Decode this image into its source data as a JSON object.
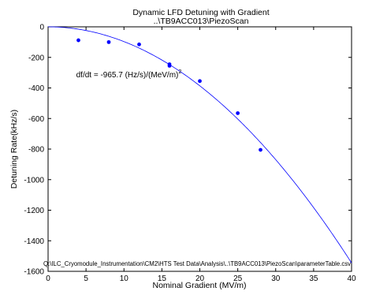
{
  "chart_data": {
    "type": "scatter",
    "title_lines": [
      "Dynamic LFD Detuning with Gradient",
      "..\\TB9ACC013\\PiezoScan"
    ],
    "xlabel": "Nominal Gradient (MV/m)",
    "ylabel": "Detuning Rate(kHz/s)",
    "xlim": [
      0,
      40
    ],
    "ylim": [
      -1600,
      0
    ],
    "xticks": [
      0,
      5,
      10,
      15,
      20,
      25,
      30,
      35,
      40
    ],
    "yticks": [
      0,
      -200,
      -400,
      -600,
      -800,
      -1000,
      -1200,
      -1400,
      -1600
    ],
    "grid": false,
    "series": [
      {
        "kind": "points",
        "x": [
          4,
          8,
          12,
          16,
          16,
          20,
          25,
          28
        ],
        "y": [
          -88,
          -100,
          -115,
          -245,
          -255,
          -355,
          -565,
          -805
        ]
      },
      {
        "kind": "fit-line",
        "coefficient": -0.9657
      }
    ],
    "colors": {
      "points": "#0000ff",
      "fit": "#0000ff"
    },
    "annotation": {
      "text": "df/dt = -965.7 (Hz/s)/(MeV/m)",
      "superscript": "2",
      "anchor_x": 3.7,
      "anchor_y": -330
    },
    "footnote": {
      "text": "Q:\\ILC_Cryomodule_Instrumentation\\CM2\\HTS Test Data\\Analysis\\..\\TB9ACC013\\PiezoScan\\parameterTable.csv",
      "anchor_x": 40,
      "anchor_y": -1565
    }
  }
}
